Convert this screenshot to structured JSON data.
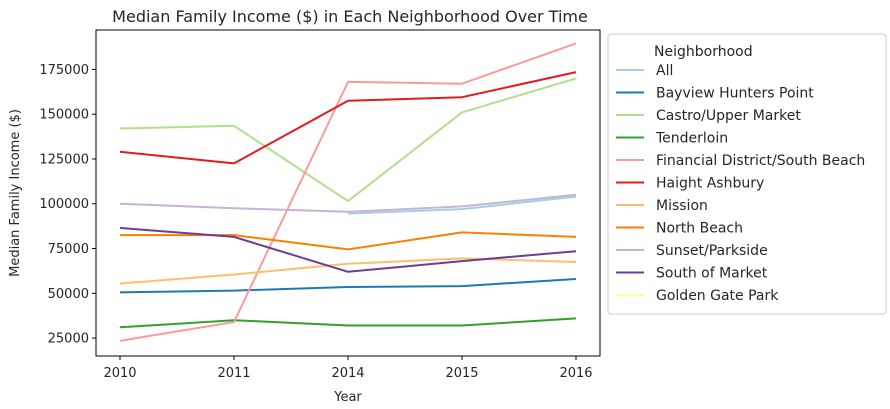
{
  "chart_data": {
    "type": "line",
    "title": "Median Family Income ($) in Each Neighborhood Over Time",
    "xlabel": "Year",
    "ylabel": "Median Family Income ($)",
    "x": [
      "2010",
      "2011",
      "2014",
      "2015",
      "2016"
    ],
    "yticks": [
      "25000",
      "50000",
      "75000",
      "100000",
      "125000",
      "150000",
      "175000"
    ],
    "ylim": [
      15000,
      197000
    ],
    "legend_title": "Neighborhood",
    "legend_position": "outside-right",
    "grid": false,
    "series": [
      {
        "name": "All",
        "color": "#a6cee3",
        "values": [
          null,
          null,
          94500,
          97000,
          104000
        ]
      },
      {
        "name": "Bayview Hunters Point",
        "color": "#1f78b4",
        "values": [
          50500,
          51500,
          53500,
          54000,
          58000
        ]
      },
      {
        "name": "Castro/Upper Market",
        "color": "#b2df8a",
        "values": [
          142000,
          143500,
          101500,
          151000,
          170000
        ]
      },
      {
        "name": "Tenderloin",
        "color": "#33a02c",
        "values": [
          31000,
          35000,
          32000,
          32000,
          36000
        ]
      },
      {
        "name": "Financial District/South Beach",
        "color": "#fb9a99",
        "values": [
          23500,
          34000,
          168000,
          167000,
          189500
        ]
      },
      {
        "name": "Haight Ashbury",
        "color": "#e31a1c",
        "values": [
          129000,
          122500,
          157500,
          159500,
          173500
        ]
      },
      {
        "name": "Mission",
        "color": "#fdbf6f",
        "values": [
          55500,
          60500,
          66500,
          69500,
          67500
        ]
      },
      {
        "name": "North Beach",
        "color": "#ff7f00",
        "values": [
          82500,
          82500,
          74500,
          84000,
          81500
        ]
      },
      {
        "name": "Sunset/Parkside",
        "color": "#cab2d6",
        "values": [
          100000,
          97500,
          95500,
          98500,
          105000
        ]
      },
      {
        "name": "South of Market",
        "color": "#6a3d9a",
        "values": [
          86500,
          81500,
          62000,
          68000,
          73500
        ]
      },
      {
        "name": "Golden Gate Park",
        "color": "#ffff99",
        "values": [
          null,
          null,
          null,
          null,
          null
        ]
      }
    ]
  }
}
